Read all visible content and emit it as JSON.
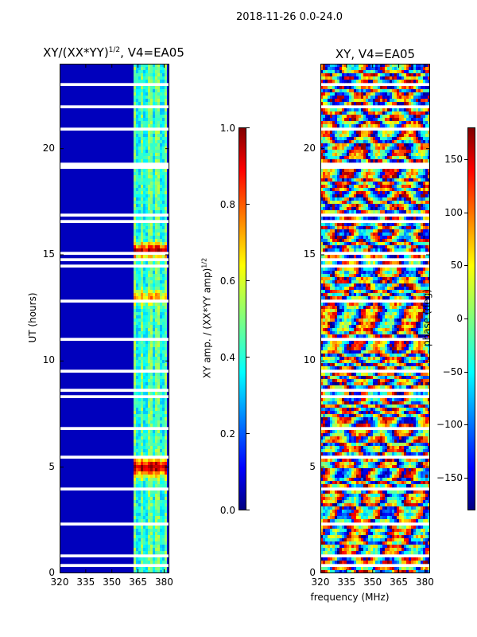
{
  "suptitle": "2018-11-26 0.0-24.0",
  "chart_data": [
    {
      "type": "heatmap",
      "title_prefix": "XY/(XX*YY)",
      "title_exp": "1/2",
      "title_suffix": ", V4=EA05",
      "ylabel": "UT (hours)",
      "xlabel": "",
      "x_range": [
        320,
        383
      ],
      "y_range": [
        0,
        24
      ],
      "x_ticks": [
        320,
        335,
        350,
        365,
        380
      ],
      "y_ticks": [
        0,
        5,
        10,
        15,
        20
      ],
      "colorbar": {
        "range": [
          0.0,
          1.0
        ],
        "ticks": [
          "0.0",
          "0.2",
          "0.4",
          "0.6",
          "0.8",
          "1.0"
        ],
        "label_prefix": "XY amp. / (XX*YY amp)",
        "label_exp": "1/2",
        "colormap": "jet"
      },
      "note": "Low (~0.05) for 320-362 MHz; elevated 0.3-0.9 in 362-381 MHz with peaks near UT 5 and 15; white rows are missing data"
    },
    {
      "type": "heatmap",
      "title": "XY, V4=EA05",
      "ylabel": "",
      "xlabel": "frequency (MHz)",
      "x_range": [
        320,
        383
      ],
      "y_range": [
        0,
        24
      ],
      "x_ticks": [
        320,
        335,
        350,
        365,
        380
      ],
      "y_ticks": [
        0,
        5,
        10,
        15,
        20
      ],
      "colorbar": {
        "range": [
          -180,
          180
        ],
        "ticks": [
          "−150",
          "−100",
          "−50",
          "0",
          "50",
          "100",
          "150"
        ],
        "label": "phase (deg)",
        "colormap": "jet"
      },
      "note": "Phase varies across full -180..180 range; white rows are missing data"
    }
  ],
  "tick_labels": {
    "x": [
      "320",
      "335",
      "350",
      "365",
      "380"
    ],
    "y": [
      "0",
      "5",
      "10",
      "15",
      "20"
    ]
  },
  "colors": {
    "background": "#ffffff",
    "axis": "#000000"
  }
}
